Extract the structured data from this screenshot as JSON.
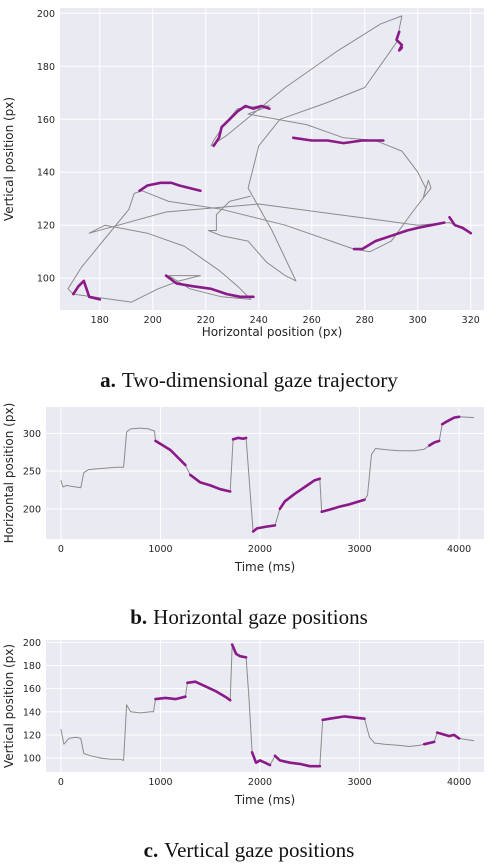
{
  "colors": {
    "plot_bg": "#eaeaf2",
    "grid": "#ffffff",
    "saccade": "#8c8c8c",
    "fixation": "#8b1a89"
  },
  "captions": [
    {
      "letter": "a.",
      "text": "Two-dimensional gaze trajectory"
    },
    {
      "letter": "b.",
      "text": "Horizontal gaze positions"
    },
    {
      "letter": "c.",
      "text": "Vertical gaze positions"
    }
  ],
  "chart_data": [
    {
      "type": "line",
      "xlabel": "Horizontal position (px)",
      "ylabel": "Vertical position (px)",
      "xlim": [
        165,
        325
      ],
      "ylim": [
        88,
        202
      ],
      "xticks": [
        180,
        200,
        220,
        240,
        260,
        280,
        300,
        320
      ],
      "yticks": [
        100,
        120,
        140,
        160,
        180,
        200
      ],
      "grid": true,
      "trajectory": [
        [
          237,
          131
        ],
        [
          229,
          129
        ],
        [
          224,
          124
        ],
        [
          224,
          118
        ],
        [
          221,
          118
        ],
        [
          226,
          116
        ],
        [
          236,
          114
        ],
        [
          243,
          106
        ],
        [
          250,
          101
        ],
        [
          254,
          99
        ],
        [
          245,
          118
        ],
        [
          236,
          134
        ],
        [
          240,
          150
        ],
        [
          248,
          160
        ],
        [
          265,
          166
        ],
        [
          280,
          172
        ],
        [
          292,
          189
        ],
        [
          294,
          199
        ],
        [
          286,
          196
        ],
        [
          270,
          186
        ],
        [
          250,
          172
        ],
        [
          228,
          154
        ],
        [
          222,
          150
        ],
        [
          223,
          152
        ],
        [
          227,
          158
        ],
        [
          232,
          164
        ],
        [
          240,
          165
        ],
        [
          244,
          165
        ],
        [
          236,
          162
        ],
        [
          258,
          158
        ],
        [
          272,
          153
        ],
        [
          284,
          152
        ],
        [
          294,
          148
        ],
        [
          300,
          140
        ],
        [
          303,
          134
        ],
        [
          302,
          130
        ],
        [
          304,
          137
        ],
        [
          305,
          134
        ],
        [
          298,
          125
        ],
        [
          290,
          114
        ],
        [
          282,
          110
        ],
        [
          276,
          111
        ],
        [
          250,
          120
        ],
        [
          226,
          126
        ],
        [
          206,
          129
        ],
        [
          196,
          133
        ],
        [
          193,
          132
        ],
        [
          191,
          126
        ],
        [
          182,
          115
        ],
        [
          173,
          104
        ],
        [
          168,
          96
        ],
        [
          170,
          94
        ],
        [
          192,
          91
        ],
        [
          202,
          96
        ],
        [
          210,
          99
        ],
        [
          218,
          101
        ],
        [
          206,
          101
        ],
        [
          214,
          96
        ],
        [
          226,
          93
        ],
        [
          237,
          92
        ],
        [
          232,
          97
        ],
        [
          225,
          103
        ],
        [
          212,
          112
        ],
        [
          198,
          117
        ],
        [
          182,
          120
        ],
        [
          176,
          117
        ],
        [
          205,
          125
        ],
        [
          240,
          128
        ],
        [
          270,
          124
        ],
        [
          300,
          120
        ],
        [
          312,
          121
        ],
        [
          320,
          117
        ]
      ],
      "fixations": [
        [
          [
            293,
            193
          ],
          [
            292,
            190
          ],
          [
            294,
            188
          ],
          [
            293,
            186
          ],
          [
            294,
            187
          ]
        ],
        [
          [
            223,
            150
          ],
          [
            225,
            153
          ],
          [
            226,
            157
          ],
          [
            229,
            160
          ],
          [
            232,
            163
          ],
          [
            235,
            165
          ],
          [
            238,
            164
          ],
          [
            241,
            165
          ],
          [
            244,
            164
          ]
        ],
        [
          [
            253,
            153
          ],
          [
            260,
            152
          ],
          [
            266,
            152
          ],
          [
            272,
            151
          ],
          [
            279,
            152
          ],
          [
            284,
            152
          ],
          [
            287,
            152
          ]
        ],
        [
          [
            195,
            133
          ],
          [
            198,
            135
          ],
          [
            203,
            136
          ],
          [
            207,
            136
          ],
          [
            210,
            135
          ],
          [
            214,
            134
          ],
          [
            218,
            133
          ]
        ],
        [
          [
            205,
            101
          ],
          [
            209,
            98
          ],
          [
            215,
            97
          ],
          [
            222,
            96
          ],
          [
            228,
            94
          ],
          [
            233,
            93
          ],
          [
            238,
            93
          ]
        ],
        [
          [
            170,
            94
          ],
          [
            172,
            97
          ],
          [
            174,
            99
          ],
          [
            175,
            96
          ],
          [
            176,
            93
          ],
          [
            180,
            92
          ]
        ],
        [
          [
            276,
            111
          ],
          [
            279,
            111
          ],
          [
            284,
            114
          ],
          [
            290,
            116
          ],
          [
            296,
            118
          ],
          [
            300,
            119
          ],
          [
            305,
            120
          ],
          [
            310,
            121
          ]
        ],
        [
          [
            312,
            123
          ],
          [
            314,
            120
          ],
          [
            317,
            119
          ],
          [
            320,
            117
          ]
        ]
      ]
    },
    {
      "type": "line",
      "xlabel": "Time (ms)",
      "ylabel": "Horizontal position (px)",
      "xlim": [
        -150,
        4250
      ],
      "ylim": [
        160,
        335
      ],
      "xticks": [
        0,
        1000,
        2000,
        3000,
        4000
      ],
      "yticks": [
        200,
        250,
        300
      ],
      "grid": true,
      "trace": [
        [
          0,
          238
        ],
        [
          20,
          229
        ],
        [
          60,
          231
        ],
        [
          100,
          230
        ],
        [
          150,
          229
        ],
        [
          200,
          228
        ],
        [
          230,
          248
        ],
        [
          280,
          252
        ],
        [
          350,
          253
        ],
        [
          450,
          254
        ],
        [
          550,
          255
        ],
        [
          630,
          255
        ],
        [
          660,
          302
        ],
        [
          700,
          306
        ],
        [
          800,
          307
        ],
        [
          880,
          306
        ],
        [
          940,
          303
        ],
        [
          950,
          290
        ],
        [
          1100,
          278
        ],
        [
          1250,
          258
        ],
        [
          1300,
          245
        ],
        [
          1400,
          235
        ],
        [
          1500,
          231
        ],
        [
          1600,
          226
        ],
        [
          1700,
          223
        ],
        [
          1730,
          292
        ],
        [
          1780,
          294
        ],
        [
          1830,
          293
        ],
        [
          1860,
          294
        ],
        [
          1900,
          223
        ],
        [
          1930,
          170
        ],
        [
          1970,
          174
        ],
        [
          2050,
          176
        ],
        [
          2150,
          178
        ],
        [
          2200,
          200
        ],
        [
          2250,
          210
        ],
        [
          2350,
          220
        ],
        [
          2450,
          229
        ],
        [
          2550,
          238
        ],
        [
          2600,
          240
        ],
        [
          2620,
          196
        ],
        [
          2700,
          199
        ],
        [
          2800,
          203
        ],
        [
          2900,
          206
        ],
        [
          3050,
          212
        ],
        [
          3080,
          218
        ],
        [
          3120,
          272
        ],
        [
          3160,
          280
        ],
        [
          3300,
          278
        ],
        [
          3400,
          277
        ],
        [
          3550,
          277
        ],
        [
          3650,
          279
        ],
        [
          3700,
          284
        ],
        [
          3750,
          288
        ],
        [
          3800,
          290
        ],
        [
          3830,
          312
        ],
        [
          3880,
          316
        ],
        [
          3950,
          321
        ],
        [
          4000,
          322
        ],
        [
          4150,
          321
        ]
      ],
      "fixation_ranges": [
        [
          950,
          1250
        ],
        [
          1300,
          1700
        ],
        [
          1730,
          1860
        ],
        [
          1930,
          2150
        ],
        [
          2200,
          2600
        ],
        [
          2620,
          3050
        ],
        [
          3700,
          3800
        ],
        [
          3830,
          4000
        ]
      ]
    },
    {
      "type": "line",
      "xlabel": "Time (ms)",
      "ylabel": "Vertical position (px)",
      "xlim": [
        -150,
        4250
      ],
      "ylim": [
        88,
        202
      ],
      "xticks": [
        0,
        1000,
        2000,
        3000,
        4000
      ],
      "yticks": [
        100,
        120,
        140,
        160,
        180,
        200
      ],
      "grid": true,
      "trace": [
        [
          0,
          125
        ],
        [
          30,
          112
        ],
        [
          80,
          117
        ],
        [
          150,
          118
        ],
        [
          200,
          117
        ],
        [
          230,
          104
        ],
        [
          300,
          102
        ],
        [
          400,
          100
        ],
        [
          500,
          99
        ],
        [
          600,
          99
        ],
        [
          630,
          98
        ],
        [
          660,
          146
        ],
        [
          700,
          140
        ],
        [
          800,
          139
        ],
        [
          900,
          140
        ],
        [
          930,
          140
        ],
        [
          950,
          151
        ],
        [
          1050,
          152
        ],
        [
          1150,
          151
        ],
        [
          1250,
          153
        ],
        [
          1270,
          165
        ],
        [
          1350,
          166
        ],
        [
          1450,
          162
        ],
        [
          1550,
          158
        ],
        [
          1650,
          153
        ],
        [
          1700,
          150
        ],
        [
          1720,
          198
        ],
        [
          1760,
          190
        ],
        [
          1800,
          188
        ],
        [
          1860,
          187
        ],
        [
          1890,
          150
        ],
        [
          1920,
          105
        ],
        [
          1960,
          96
        ],
        [
          2000,
          98
        ],
        [
          2050,
          96
        ],
        [
          2100,
          94
        ],
        [
          2150,
          102
        ],
        [
          2200,
          98
        ],
        [
          2300,
          96
        ],
        [
          2400,
          95
        ],
        [
          2500,
          93
        ],
        [
          2600,
          93
        ],
        [
          2630,
          133
        ],
        [
          2700,
          134
        ],
        [
          2850,
          136
        ],
        [
          2950,
          135
        ],
        [
          3050,
          134
        ],
        [
          3100,
          118
        ],
        [
          3150,
          113
        ],
        [
          3250,
          112
        ],
        [
          3400,
          111
        ],
        [
          3500,
          110
        ],
        [
          3600,
          111
        ],
        [
          3650,
          112
        ],
        [
          3750,
          114
        ],
        [
          3780,
          122
        ],
        [
          3820,
          121
        ],
        [
          3900,
          119
        ],
        [
          3950,
          120
        ],
        [
          4000,
          117
        ],
        [
          4150,
          115
        ]
      ],
      "fixation_ranges": [
        [
          950,
          1250
        ],
        [
          1270,
          1700
        ],
        [
          1720,
          1860
        ],
        [
          1920,
          2100
        ],
        [
          2150,
          2600
        ],
        [
          2630,
          3050
        ],
        [
          3650,
          3750
        ],
        [
          3780,
          4000
        ]
      ]
    }
  ]
}
